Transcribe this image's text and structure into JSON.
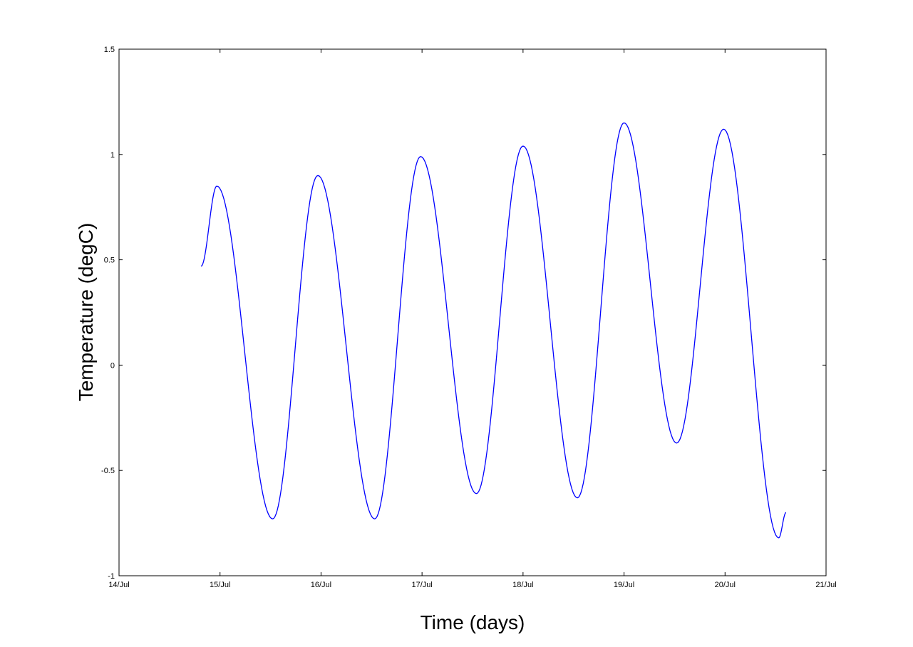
{
  "chart_data": {
    "type": "line",
    "title": "",
    "xlabel": "Time (days)",
    "ylabel": "Temperature (degC)",
    "xlim": [
      "14/Jul",
      "21/Jul"
    ],
    "ylim": [
      -1,
      1.5
    ],
    "x_tick_labels": [
      "14/Jul",
      "15/Jul",
      "16/Jul",
      "17/Jul",
      "18/Jul",
      "19/Jul",
      "20/Jul",
      "21/Jul"
    ],
    "y_ticks": [
      -1,
      -0.5,
      0,
      0.5,
      1,
      1.5
    ],
    "y_tick_labels": [
      "-1",
      "-0.5",
      "0",
      "0.5",
      "1",
      "1.5"
    ],
    "grid": false,
    "series": [
      {
        "color": "#0000ff",
        "points": [
          [
            "14/Jul 19:30",
            0.47
          ],
          [
            "14/Jul 23:15",
            0.85
          ],
          [
            "15/Jul 12:30",
            -0.73
          ],
          [
            "15/Jul 23:15",
            0.9
          ],
          [
            "16/Jul 12:45",
            -0.73
          ],
          [
            "16/Jul 23:40",
            0.99
          ],
          [
            "17/Jul 12:55",
            -0.61
          ],
          [
            "18/Jul 00:00",
            1.04
          ],
          [
            "18/Jul 12:55",
            -0.63
          ],
          [
            "19/Jul 00:00",
            1.15
          ],
          [
            "19/Jul 12:30",
            -0.37
          ],
          [
            "19/Jul 23:40",
            1.12
          ],
          [
            "20/Jul 12:45",
            -0.82
          ],
          [
            "20/Jul 14:30",
            -0.7
          ]
        ]
      }
    ]
  }
}
